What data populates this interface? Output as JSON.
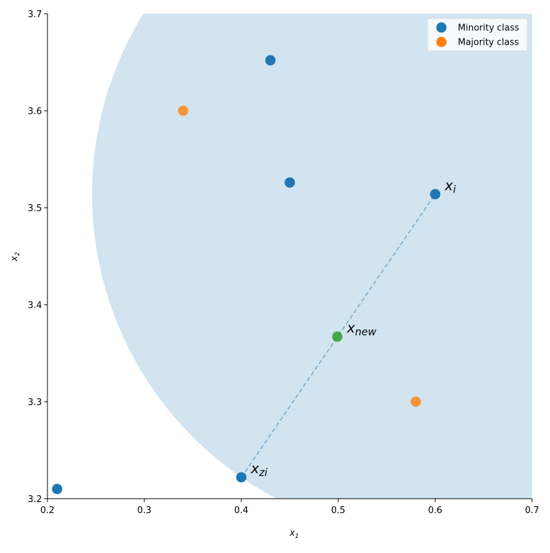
{
  "chart_data": {
    "type": "scatter",
    "title": "",
    "xlabel": "x_1",
    "ylabel": "x_2",
    "xlim": [
      0.2,
      0.7
    ],
    "ylim": [
      3.2,
      3.7
    ],
    "xticks": [
      "0.2",
      "0.3",
      "0.4",
      "0.5",
      "0.6",
      "0.7"
    ],
    "yticks": [
      "3.2",
      "3.3",
      "3.4",
      "3.5",
      "3.6",
      "3.7"
    ],
    "grid": false,
    "legend_position": "top-right",
    "series": [
      {
        "name": "Minority class",
        "color": "#1f77b4",
        "points": [
          [
            0.43,
            3.652
          ],
          [
            0.45,
            3.526
          ],
          [
            0.6,
            3.514
          ],
          [
            0.4,
            3.222
          ],
          [
            0.21,
            3.21
          ]
        ]
      },
      {
        "name": "Majority class",
        "color": "#ff7f0e",
        "points": [
          [
            0.34,
            3.6
          ],
          [
            0.58,
            3.3
          ]
        ]
      }
    ],
    "new_point": {
      "x": 0.499,
      "y": 3.367,
      "color": "#2ca02c"
    },
    "neighborhood": {
      "center": [
        0.6,
        3.514
      ],
      "through": [
        0.4,
        3.222
      ],
      "color": "#1f77b4",
      "opacity": 0.2
    },
    "segment": {
      "from": [
        0.4,
        3.222
      ],
      "to": [
        0.6,
        3.514
      ],
      "style": "dashed"
    },
    "annotations": [
      {
        "base": "x",
        "sub": "i",
        "x": 0.6,
        "y": 3.514
      },
      {
        "base": "x",
        "sub": "new",
        "x": 0.499,
        "y": 3.367
      },
      {
        "base": "x",
        "sub": "zi",
        "x": 0.4,
        "y": 3.222
      }
    ]
  }
}
